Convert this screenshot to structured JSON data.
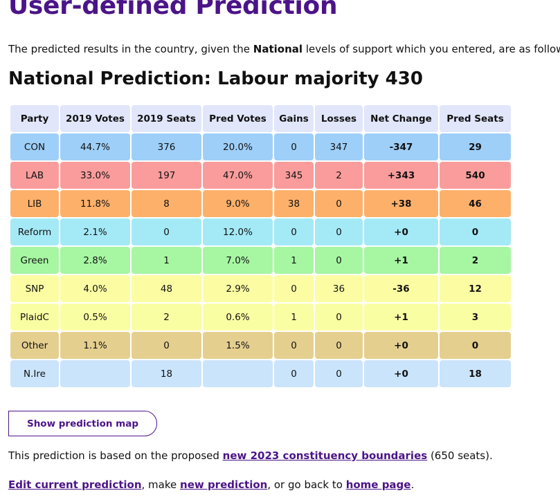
{
  "page": {
    "title": "User-defined Prediction",
    "intro": {
      "before": "The predicted results in the country, given the ",
      "bold": "National",
      "after": " levels of support which you entered, are as follows."
    },
    "summary": "National Prediction: Labour majority 430"
  },
  "table": {
    "headers": {
      "party": "Party",
      "votes2019": "2019 Votes",
      "seats2019": "2019 Seats",
      "pred_votes": "Pred Votes",
      "gains": "Gains",
      "losses": "Losses",
      "net": "Net Change",
      "pred_seats": "Pred Seats"
    },
    "rows": [
      {
        "party": "CON",
        "votes2019": "44.7%",
        "seats2019": "376",
        "pred_votes": "20.0%",
        "gains": "0",
        "losses": "347",
        "net": "-347",
        "pred_seats": "29",
        "color": "#9ecff8"
      },
      {
        "party": "LAB",
        "votes2019": "33.0%",
        "seats2019": "197",
        "pred_votes": "47.0%",
        "gains": "345",
        "losses": "2",
        "net": "+343",
        "pred_seats": "540",
        "color": "#fb9c9c"
      },
      {
        "party": "LIB",
        "votes2019": "11.8%",
        "seats2019": "8",
        "pred_votes": "9.0%",
        "gains": "38",
        "losses": "0",
        "net": "+38",
        "pred_seats": "46",
        "color": "#fdb06a"
      },
      {
        "party": "Reform",
        "votes2019": "2.1%",
        "seats2019": "0",
        "pred_votes": "12.0%",
        "gains": "0",
        "losses": "0",
        "net": "+0",
        "pred_seats": "0",
        "color": "#a4e9f6"
      },
      {
        "party": "Green",
        "votes2019": "2.8%",
        "seats2019": "1",
        "pred_votes": "7.0%",
        "gains": "1",
        "losses": "0",
        "net": "+1",
        "pred_seats": "2",
        "color": "#a6f6a2"
      },
      {
        "party": "SNP",
        "votes2019": "4.0%",
        "seats2019": "48",
        "pred_votes": "2.9%",
        "gains": "0",
        "losses": "36",
        "net": "-36",
        "pred_seats": "12",
        "color": "#fcfda3"
      },
      {
        "party": "PlaidC",
        "votes2019": "0.5%",
        "seats2019": "2",
        "pred_votes": "0.6%",
        "gains": "1",
        "losses": "0",
        "net": "+1",
        "pred_seats": "3",
        "color": "#fafea3"
      },
      {
        "party": "Other",
        "votes2019": "1.1%",
        "seats2019": "0",
        "pred_votes": "1.5%",
        "gains": "0",
        "losses": "0",
        "net": "+0",
        "pred_seats": "0",
        "color": "#e5cf8f"
      },
      {
        "party": "N.Ire",
        "votes2019": "",
        "seats2019": "18",
        "pred_votes": "",
        "gains": "0",
        "losses": "0",
        "net": "+0",
        "pred_seats": "18",
        "color": "#cae4fb"
      }
    ]
  },
  "buttons": {
    "show_map": "Show prediction map"
  },
  "basis": {
    "before": "This prediction is based on the proposed ",
    "link": "new 2023 constituency boundaries",
    "after": " (650 seats)."
  },
  "links": {
    "edit": "Edit current prediction",
    "sep1": ", make ",
    "new": "new prediction",
    "sep2": ", or go back to ",
    "home": "home page",
    "end": "."
  }
}
